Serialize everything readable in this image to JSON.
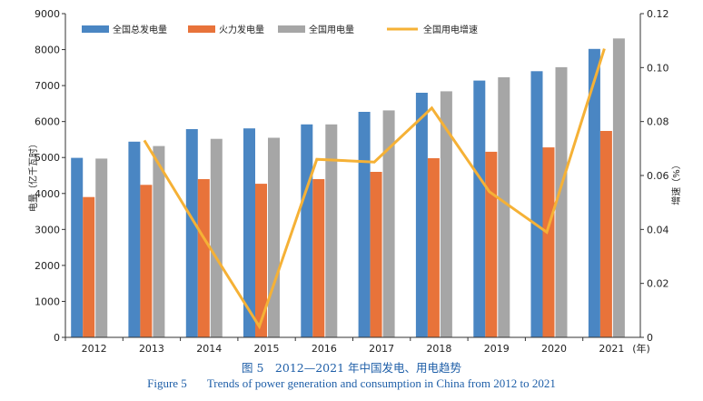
{
  "chart_data": {
    "type": "bar",
    "categories": [
      "2012",
      "2013",
      "2014",
      "2015",
      "2016",
      "2017",
      "2018",
      "2019",
      "2020",
      "2021"
    ],
    "x_unit_label": "(年)",
    "ylabel": "电量（亿千瓦时）",
    "y2label": "增速（%）",
    "ylim": [
      0,
      9000
    ],
    "y2lim": [
      0,
      0.12
    ],
    "yticks": [
      "0",
      "1000",
      "2000",
      "3000",
      "4000",
      "5000",
      "6000",
      "7000",
      "8000",
      "9000"
    ],
    "y2ticks": [
      "0",
      "0.02",
      "0.04",
      "0.06",
      "0.08",
      "0.10",
      "0.12"
    ],
    "legend_position": "top",
    "grid": false,
    "series": [
      {
        "name": "全国总发电量",
        "kind": "bar",
        "color": "#4a86c3",
        "values": [
          4990,
          5440,
          5790,
          5810,
          5920,
          6270,
          6800,
          7140,
          7400,
          8020
        ]
      },
      {
        "name": "火力发电量",
        "kind": "bar",
        "color": "#e8733a",
        "values": [
          3900,
          4240,
          4400,
          4270,
          4400,
          4600,
          4980,
          5160,
          5280,
          5740
        ]
      },
      {
        "name": "全国用电量",
        "kind": "bar",
        "color": "#a6a6a6",
        "values": [
          4970,
          5320,
          5520,
          5550,
          5920,
          6310,
          6840,
          7230,
          7510,
          8310
        ]
      },
      {
        "name": "全国用电增速",
        "kind": "line",
        "axis": "right",
        "color": "#f5b136",
        "values": [
          null,
          0.073,
          0.038,
          0.004,
          0.066,
          0.065,
          0.085,
          0.054,
          0.039,
          0.107
        ]
      }
    ]
  },
  "caption": {
    "cn": "图 5　2012—2021 年中国发电、用电趋势",
    "en_number": "Figure 5",
    "en_text": "Trends of power generation and consumption in China from 2012 to 2021"
  }
}
